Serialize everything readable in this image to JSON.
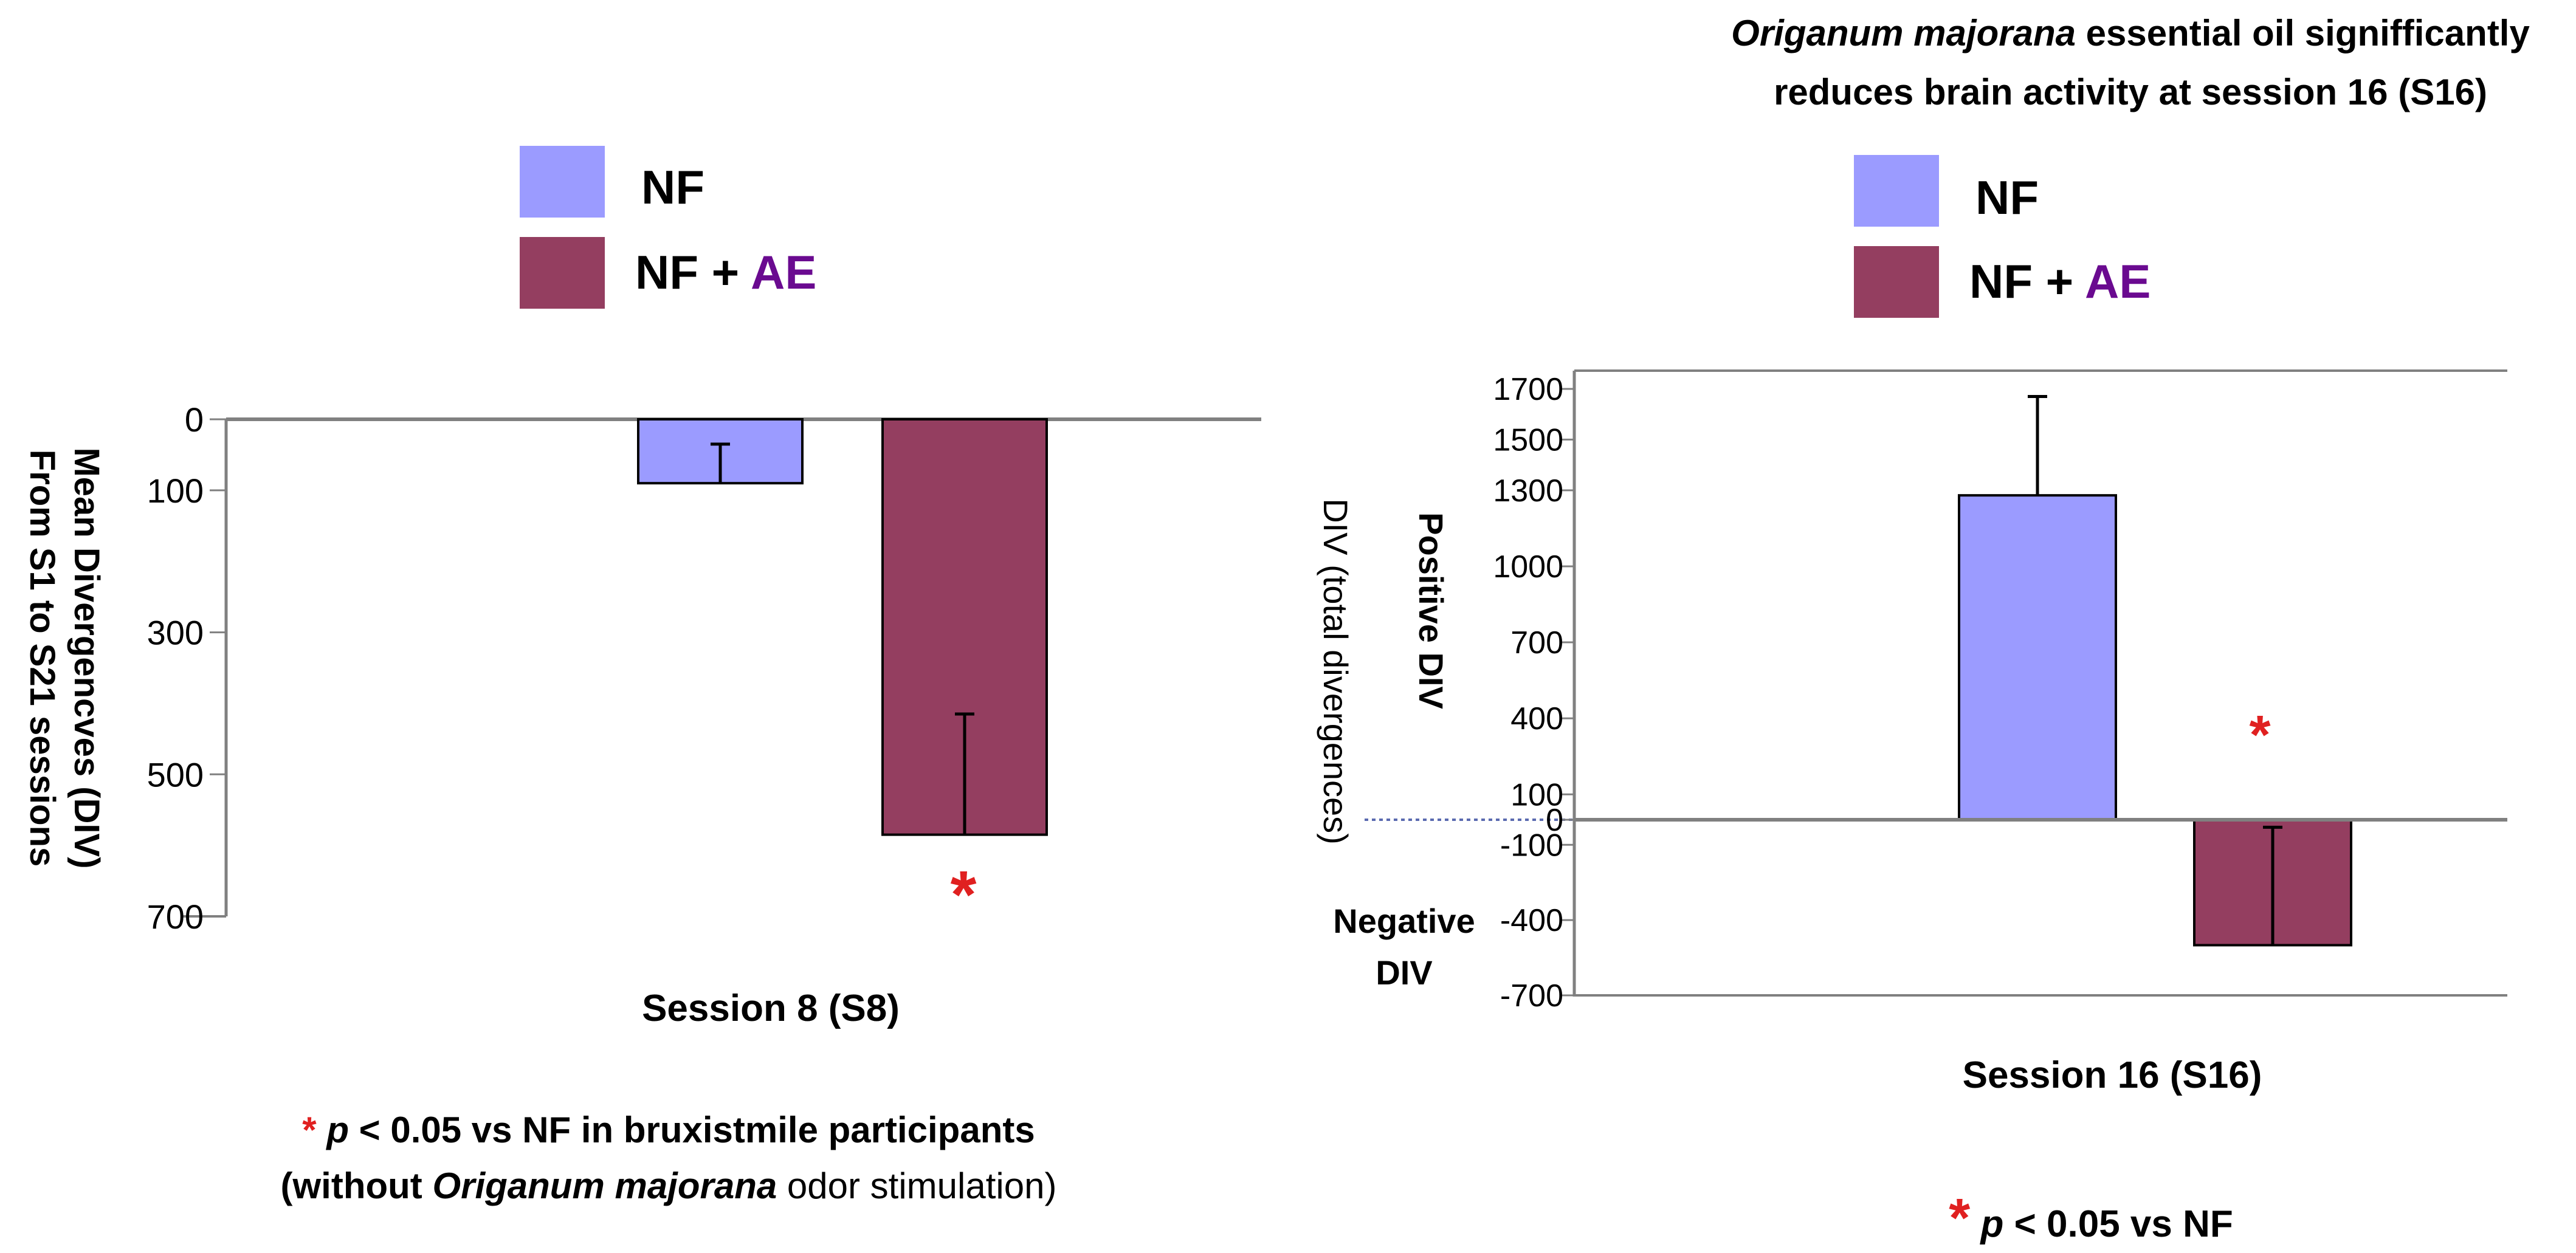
{
  "colors": {
    "nf": "#9b9bff",
    "nf_ae": "#943e60",
    "ae_text": "#6a0a90",
    "star": "#e02020",
    "axis": "#808080"
  },
  "chart_data": [
    {
      "type": "bar",
      "title": "",
      "xlabel": "Session 8 (S8)",
      "ylabel_lines": [
        "Mean Divergencves (DIV)",
        "From S1 to S21 sessions"
      ],
      "categories": [
        "Session 8 (S8)"
      ],
      "series": [
        {
          "name": "NF",
          "value": 90,
          "error_low": 35
        },
        {
          "name": "NF + AE",
          "value": 585,
          "error_low": 415
        }
      ],
      "y_axis_inverted": true,
      "ylim": [
        0,
        700
      ],
      "yticks": [
        0,
        100,
        300,
        500,
        700
      ],
      "ytick_labels": [
        "0",
        "100",
        "300",
        "500",
        "700"
      ],
      "legend": {
        "position": "top",
        "items": [
          {
            "label": "NF",
            "plus": "",
            "accent": ""
          },
          {
            "label": "NF",
            "plus": "+",
            "accent": "AE"
          }
        ]
      },
      "significance_mark": "*",
      "footnote": {
        "line1_star": "*",
        "line1_p": "p",
        "line1_rest": " < 0.05 vs NF in bruxistmile participants",
        "line2_before": "(without ",
        "line2_italic": "Origanum majorana",
        "line2_after": " odor stimulation)"
      }
    },
    {
      "type": "bar",
      "title_italic": "Origanum majorana",
      "title_rest": " essential oil signifficantly",
      "title_line2": "reduces brain activity at session 16 (S16)",
      "xlabel": "Session 16 (S16)",
      "ylabel": "DIV (total divergences)",
      "positive_label": "Positive DIV",
      "negative_label_lines": [
        "Negative",
        "DIV"
      ],
      "categories": [
        "Session 16 (S16)"
      ],
      "series": [
        {
          "name": "NF",
          "value": 1280,
          "error_high": 1670
        },
        {
          "name": "NF + AE",
          "value": -500,
          "error_high": -30
        }
      ],
      "ylim": [
        -700,
        1700
      ],
      "yticks": [
        1700,
        1500,
        1300,
        1000,
        700,
        400,
        100,
        0,
        -100,
        -400,
        -700
      ],
      "ytick_labels": [
        "1700",
        "1500",
        "1300",
        "1000",
        "700",
        "400",
        "100",
        "0",
        "-100",
        "-400",
        "-700"
      ],
      "legend": {
        "position": "top",
        "items": [
          {
            "label": "NF",
            "plus": "",
            "accent": ""
          },
          {
            "label": "NF",
            "plus": "+",
            "accent": "AE"
          }
        ]
      },
      "significance_mark": "*",
      "footnote": {
        "star": "*",
        "p": "p",
        "rest": " < 0.05 vs NF"
      }
    }
  ]
}
